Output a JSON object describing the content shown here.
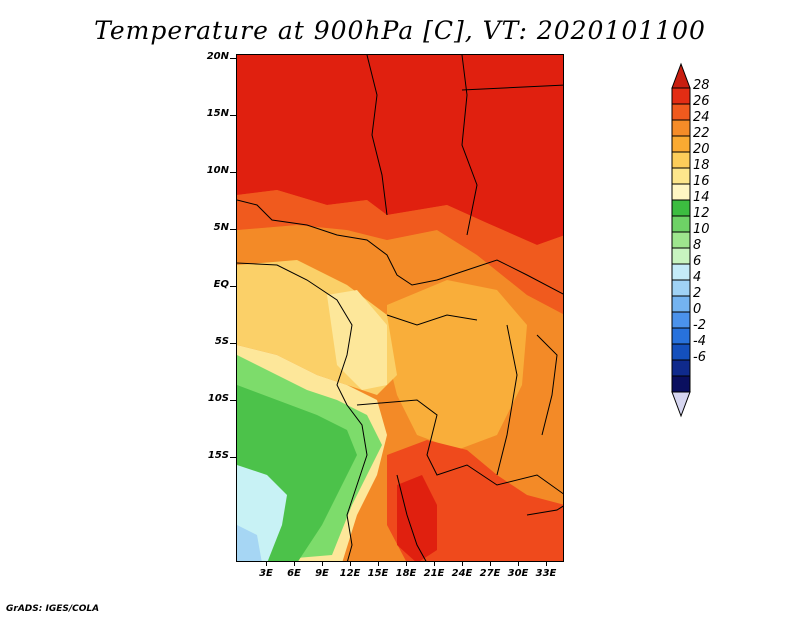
{
  "title": "Temperature at 900hPa [C], VT: 2020101100",
  "credit": "GrADS: IGES/COLA",
  "latitude_labels": [
    "20N",
    "15N",
    "10N",
    "5N",
    "EQ",
    "5S",
    "10S",
    "15S"
  ],
  "longitude_labels": [
    "3E",
    "6E",
    "9E",
    "12E",
    "15E",
    "18E",
    "21E",
    "24E",
    "27E",
    "30E",
    "33E"
  ],
  "colorbar": {
    "labels": [
      "28",
      "26",
      "24",
      "22",
      "20",
      "18",
      "16",
      "14",
      "12",
      "10",
      "8",
      "6",
      "4",
      "2",
      "0",
      "-2",
      "-4",
      "-6"
    ],
    "colors": [
      "#c81e10",
      "#e32d14",
      "#f05a1e",
      "#f58c28",
      "#faaa32",
      "#fccd5a",
      "#fde68c",
      "#fff6c3",
      "#3cbd40",
      "#6ed266",
      "#9ee68e",
      "#c8f4c0",
      "#c4ebf8",
      "#a0d2f5",
      "#74b3f0",
      "#4b92eb",
      "#2872dc",
      "#1450bd",
      "#0f2a8c",
      "#0a0f5f",
      "#d6d6f0"
    ]
  },
  "map_palette": {
    "very_hot": "#e0200f",
    "hot": "#ef4a1c",
    "warm": "#f38a27",
    "mild": "#f9ae3a",
    "moderate": "#fbd068",
    "cool": "#fde79a",
    "green_light": "#7ddc6b",
    "green": "#4cc24a",
    "pale_cyan": "#c8f2f5",
    "light_blue": "#a6d6f4"
  }
}
